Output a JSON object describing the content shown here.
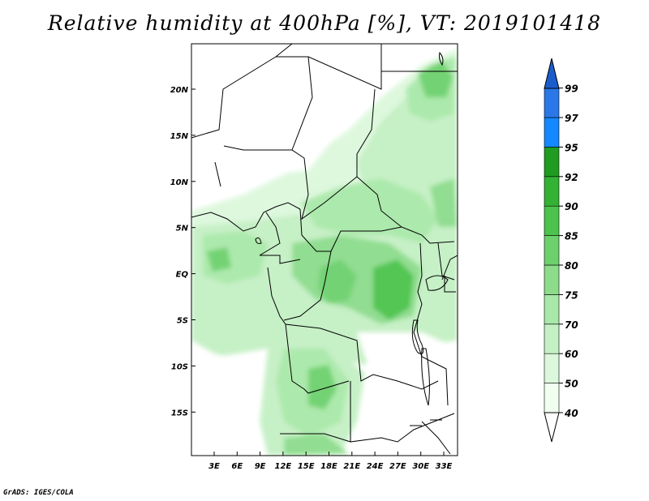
{
  "title": "Relative humidity at 400hPa [%], VT: 2019101418",
  "footer": "GrADS: IGES/COLA",
  "axes": {
    "lat_ticks": [
      "20N",
      "15N",
      "10N",
      "5N",
      "EQ",
      "5S",
      "10S",
      "15S"
    ],
    "lon_ticks": [
      "3E",
      "6E",
      "9E",
      "12E",
      "15E",
      "18E",
      "21E",
      "24E",
      "27E",
      "30E",
      "33E"
    ]
  },
  "colorbar": {
    "levels": [
      "40",
      "50",
      "60",
      "70",
      "75",
      "80",
      "85",
      "90",
      "92",
      "95",
      "97",
      "99"
    ],
    "colors": [
      "#f0fff0",
      "#dcf8dc",
      "#c4f0c4",
      "#a8e8a8",
      "#8cdc8c",
      "#6cd06c",
      "#4cc34c",
      "#34b234",
      "#209c20",
      "#1488ff",
      "#2a78e8",
      "#1a5ccc"
    ]
  }
}
